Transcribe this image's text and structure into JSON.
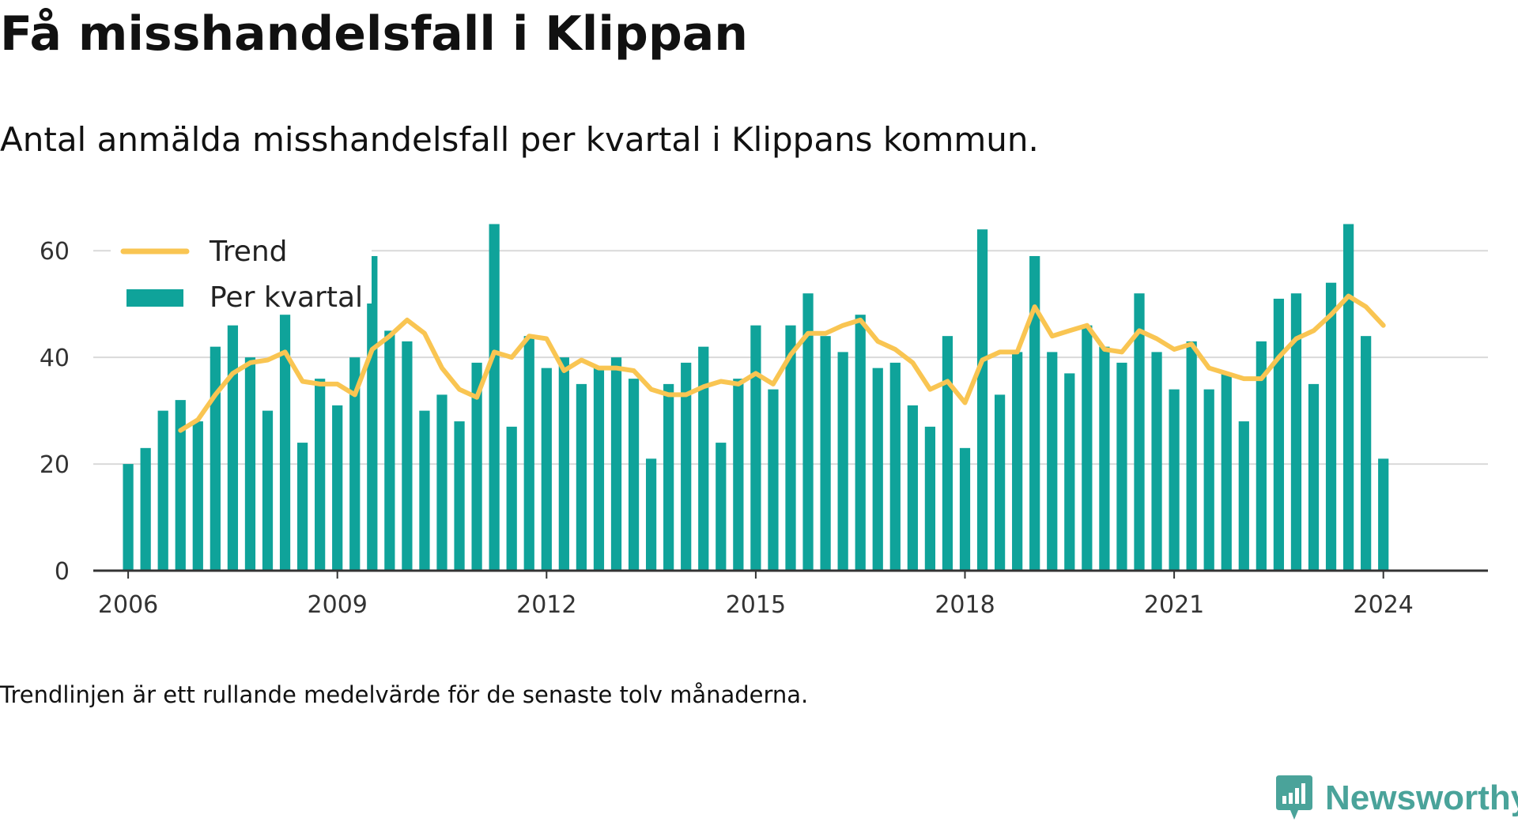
{
  "title": "Få misshandelsfall i Klippan",
  "subtitle": "Antal anmälda misshandelsfall per kvartal i Klippans kommun.",
  "note": "Trendlinjen är ett rullande medelvärde för de senaste tolv månaderna.",
  "brand": {
    "name": "Newsworthy",
    "color": "#4aa39a"
  },
  "chart_data": {
    "type": "bar",
    "x_start": "2006-Q1",
    "xlim": [
      "2005-Q3",
      "2025-Q3"
    ],
    "ylim": [
      0,
      67
    ],
    "x_ticks": [
      "2006",
      "2009",
      "2012",
      "2015",
      "2018",
      "2021",
      "2024"
    ],
    "y_ticks": [
      0,
      20,
      40,
      60
    ],
    "grid": true,
    "legend": {
      "placement": "top-left"
    },
    "colors": {
      "bars": "#0fa39a",
      "trend": "#f9c552",
      "grid": "#d9d9d9",
      "axis": "#333333"
    },
    "series": [
      {
        "name": "Per kvartal",
        "kind": "bar",
        "values": [
          20,
          23,
          30,
          32,
          28,
          42,
          46,
          40,
          30,
          48,
          24,
          36,
          31,
          40,
          59,
          45,
          43,
          30,
          33,
          28,
          39,
          65,
          27,
          44,
          38,
          40,
          35,
          38,
          40,
          36,
          21,
          35,
          39,
          42,
          24,
          36,
          46,
          34,
          46,
          52,
          44,
          41,
          48,
          38,
          39,
          31,
          27,
          44,
          23,
          64,
          33,
          41,
          59,
          41,
          37,
          46,
          42,
          39,
          52,
          41,
          34,
          43,
          34,
          37,
          28,
          43,
          51,
          52,
          35,
          54,
          65,
          44,
          21
        ]
      },
      {
        "name": "Trend",
        "kind": "line",
        "values": [
          null,
          null,
          null,
          26.3,
          28.3,
          33,
          37,
          39,
          39.5,
          41,
          35.5,
          35,
          35,
          33,
          41.5,
          44,
          47,
          44.5,
          38,
          34,
          32.5,
          41,
          40,
          44,
          43.5,
          37.5,
          39.5,
          38,
          38,
          37.5,
          34,
          33,
          33,
          34.5,
          35.5,
          35,
          37,
          35,
          40.5,
          44.5,
          44.5,
          46,
          47,
          43,
          41.5,
          39,
          34,
          35.5,
          31.5,
          39.5,
          41,
          41,
          49.5,
          44,
          45,
          46,
          41.5,
          41,
          45,
          43.5,
          41.5,
          42.5,
          38,
          37,
          36,
          36,
          40,
          43.5,
          45,
          48,
          51.5,
          49.5,
          46
        ]
      }
    ]
  }
}
